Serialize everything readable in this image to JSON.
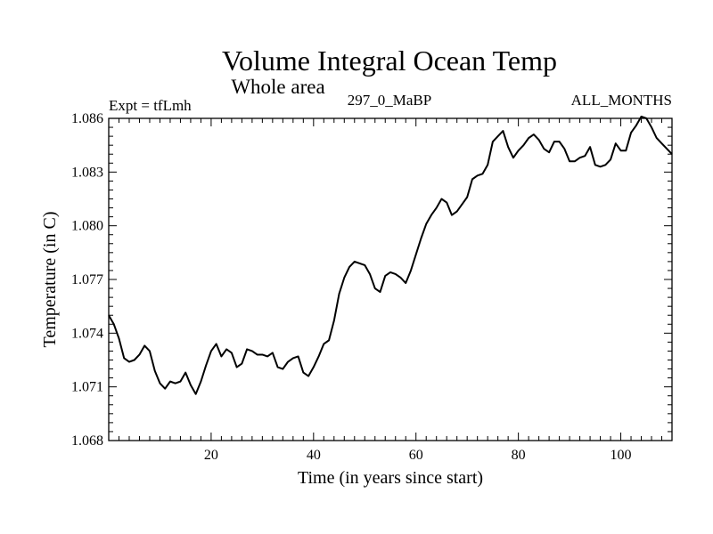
{
  "chart_data": {
    "type": "line",
    "title": "Volume Integral Ocean Temp",
    "subtitle": "Whole area",
    "annotations": {
      "left": "Expt = tfLmh",
      "center": "297_0_MaBP",
      "right": "ALL_MONTHS"
    },
    "xlabel": "Time (in years since start)",
    "ylabel": "Temperature (in C)",
    "xlim": [
      0,
      110
    ],
    "ylim": [
      1.068,
      1.086
    ],
    "xticks": [
      20,
      40,
      60,
      80,
      100
    ],
    "xtick_labels": [
      "20",
      "40",
      "60",
      "80",
      "100"
    ],
    "yticks": [
      1.068,
      1.071,
      1.074,
      1.077,
      1.08,
      1.083,
      1.086
    ],
    "ytick_labels": [
      "1.068",
      "1.071",
      "1.074",
      "1.077",
      "1.080",
      "1.083",
      "1.086"
    ],
    "grid": false,
    "series": [
      {
        "name": "Volume Integral Ocean Temp",
        "x": [
          0,
          1,
          2,
          3,
          4,
          5,
          6,
          7,
          8,
          9,
          10,
          11,
          12,
          13,
          14,
          15,
          16,
          17,
          18,
          19,
          20,
          21,
          22,
          23,
          24,
          25,
          26,
          27,
          28,
          29,
          30,
          31,
          32,
          33,
          34,
          35,
          36,
          37,
          38,
          39,
          40,
          41,
          42,
          43,
          44,
          45,
          46,
          47,
          48,
          49,
          50,
          51,
          52,
          53,
          54,
          55,
          56,
          57,
          58,
          59,
          60,
          61,
          62,
          63,
          64,
          65,
          66,
          67,
          68,
          69,
          70,
          71,
          72,
          73,
          74,
          75,
          76,
          77,
          78,
          79,
          80,
          81,
          82,
          83,
          84,
          85,
          86,
          87,
          88,
          89,
          90,
          91,
          92,
          93,
          94,
          95,
          96,
          97,
          98,
          99,
          100,
          101,
          102,
          103,
          104,
          105,
          106,
          107,
          108,
          109,
          110
        ],
        "values": [
          1.075,
          1.0745,
          1.0737,
          1.0726,
          1.0724,
          1.0725,
          1.0728,
          1.0733,
          1.073,
          1.0719,
          1.0712,
          1.0709,
          1.0713,
          1.0712,
          1.0713,
          1.0718,
          1.0711,
          1.0706,
          1.0713,
          1.0722,
          1.073,
          1.0734,
          1.0727,
          1.0731,
          1.0729,
          1.0721,
          1.0723,
          1.0731,
          1.073,
          1.0728,
          1.0728,
          1.0727,
          1.0729,
          1.0721,
          1.072,
          1.0724,
          1.0726,
          1.0727,
          1.0718,
          1.0716,
          1.0721,
          1.0727,
          1.0734,
          1.0736,
          1.0747,
          1.0762,
          1.0771,
          1.0777,
          1.078,
          1.0779,
          1.0778,
          1.0773,
          1.0765,
          1.0763,
          1.0772,
          1.0774,
          1.0773,
          1.0771,
          1.0768,
          1.0775,
          1.0784,
          1.0793,
          1.0801,
          1.0806,
          1.081,
          1.0815,
          1.0813,
          1.0806,
          1.0808,
          1.0812,
          1.0816,
          1.0826,
          1.0828,
          1.0829,
          1.0834,
          1.0847,
          1.085,
          1.0853,
          1.0844,
          1.0838,
          1.0842,
          1.0845,
          1.0849,
          1.0851,
          1.0848,
          1.0843,
          1.0841,
          1.0847,
          1.0847,
          1.0843,
          1.0836,
          1.0836,
          1.0838,
          1.0839,
          1.0844,
          1.0834,
          1.0833,
          1.0834,
          1.0837,
          1.0846,
          1.0842,
          1.0842,
          1.0852,
          1.0856,
          1.0861,
          1.086,
          1.0855,
          1.0849,
          1.0846,
          1.0843,
          1.084
        ]
      }
    ]
  }
}
